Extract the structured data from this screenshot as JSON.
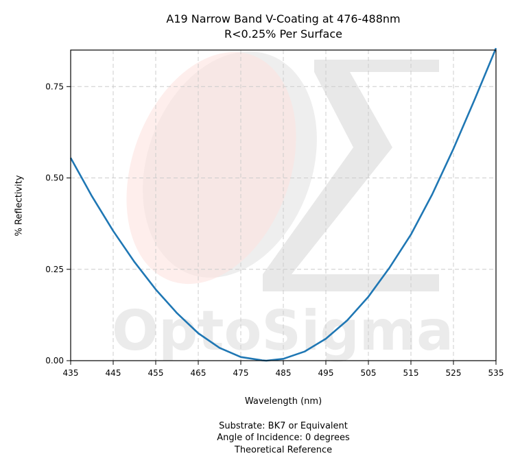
{
  "title": [
    "A19 Narrow Band V-Coating at 476-488nm",
    "R<0.25% Per Surface"
  ],
  "watermark": {
    "brand": "OptoSigma"
  },
  "footer": [
    "Substrate: BK7 or Equivalent",
    "Angle of Incidence: 0 degrees",
    "Theoretical Reference"
  ],
  "colors": {
    "line": "#1f77b4",
    "grid": "#cccccc",
    "watermark_gray": "#d9d9d9",
    "watermark_pink": "#fde3e0"
  },
  "chart_data": {
    "type": "line",
    "title": "A19 Narrow Band V-Coating at 476-488nm\nR<0.25% Per Surface",
    "xlabel": "Wavelength (nm)",
    "ylabel": "% Reflectivity",
    "xlim": [
      435,
      535
    ],
    "ylim": [
      0,
      0.85
    ],
    "xticks": [
      435,
      445,
      455,
      465,
      475,
      485,
      495,
      505,
      515,
      525,
      535
    ],
    "yticks": [
      0.0,
      0.25,
      0.5,
      0.75
    ],
    "ytick_labels": [
      "0.00",
      "0.25",
      "0.50",
      "0.75"
    ],
    "grid": true,
    "series": [
      {
        "x": [
          435,
          440,
          445,
          450,
          455,
          460,
          465,
          470,
          475,
          480,
          481,
          485,
          490,
          495,
          500,
          505,
          510,
          515,
          520,
          525,
          530,
          535
        ],
        "y": [
          0.555,
          0.45,
          0.355,
          0.27,
          0.195,
          0.13,
          0.075,
          0.035,
          0.01,
          0.001,
          0.0,
          0.005,
          0.025,
          0.06,
          0.11,
          0.175,
          0.255,
          0.345,
          0.455,
          0.58,
          0.715,
          0.855
        ]
      }
    ]
  }
}
